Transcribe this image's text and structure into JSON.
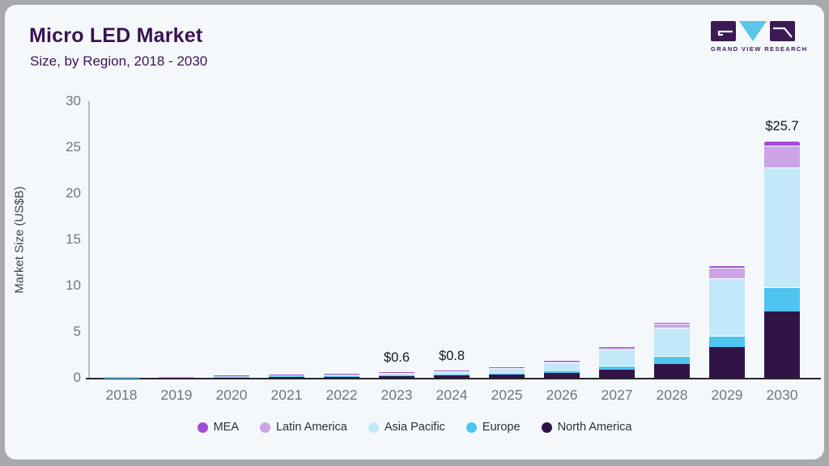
{
  "header": {
    "title": "Micro LED Market",
    "subtitle": "Size, by Region, 2018 - 2030"
  },
  "logo": {
    "caption": "GRAND VIEW RESEARCH",
    "dark_color": "#3b1a53",
    "blue_color": "#5bc6ea"
  },
  "colors": {
    "card_background": "#f4f8fb",
    "frame": "#a7a9ad",
    "title_text": "#3a1253",
    "axis_text": "#6e7780",
    "x_axis_line": "#26262c"
  },
  "chart_data": {
    "type": "bar",
    "stacked": true,
    "title": "Micro LED Market",
    "subtitle": "Size, by Region, 2018 - 2030",
    "xlabel": "",
    "ylabel": "Market Size (US$B)",
    "ylim": [
      0,
      30
    ],
    "yticks": [
      0,
      5,
      10,
      15,
      20,
      25,
      30
    ],
    "grid": false,
    "legend_position": "bottom",
    "categories": [
      "2018",
      "2019",
      "2020",
      "2021",
      "2022",
      "2023",
      "2024",
      "2025",
      "2026",
      "2027",
      "2028",
      "2029",
      "2030"
    ],
    "series": [
      {
        "name": "North America",
        "color": "#321348",
        "values": [
          0.02,
          0.04,
          0.08,
          0.11,
          0.15,
          0.22,
          0.3,
          0.38,
          0.55,
          0.9,
          1.5,
          3.3,
          7.2
        ]
      },
      {
        "name": "Europe",
        "color": "#4fc4f0",
        "values": [
          0.01,
          0.01,
          0.02,
          0.03,
          0.04,
          0.05,
          0.07,
          0.1,
          0.15,
          0.38,
          0.9,
          1.3,
          2.6
        ]
      },
      {
        "name": "Asia Pacific",
        "color": "#c3e8f9",
        "values": [
          0.03,
          0.06,
          0.12,
          0.17,
          0.24,
          0.28,
          0.37,
          0.58,
          1.0,
          1.75,
          3.0,
          6.2,
          13.0
        ]
      },
      {
        "name": "Latin America",
        "color": "#cea4e9",
        "values": [
          0.01,
          0.01,
          0.02,
          0.03,
          0.03,
          0.04,
          0.05,
          0.07,
          0.1,
          0.27,
          0.5,
          1.1,
          2.4
        ]
      },
      {
        "name": "MEA",
        "color": "#a24ed4",
        "values": [
          0.0,
          0.0,
          0.01,
          0.01,
          0.02,
          0.01,
          0.01,
          0.02,
          0.03,
          0.05,
          0.1,
          0.2,
          0.5
        ]
      }
    ],
    "totals": [
      0.07,
      0.12,
      0.25,
      0.35,
      0.48,
      0.6,
      0.8,
      1.15,
      1.83,
      3.35,
      6.0,
      12.1,
      25.7
    ],
    "value_labels": [
      {
        "category": "2023",
        "text": "$0.6"
      },
      {
        "category": "2024",
        "text": "$0.8"
      },
      {
        "category": "2030",
        "text": "$25.7"
      }
    ],
    "legend": [
      "MEA",
      "Latin America",
      "Asia Pacific",
      "Europe",
      "North America"
    ]
  }
}
